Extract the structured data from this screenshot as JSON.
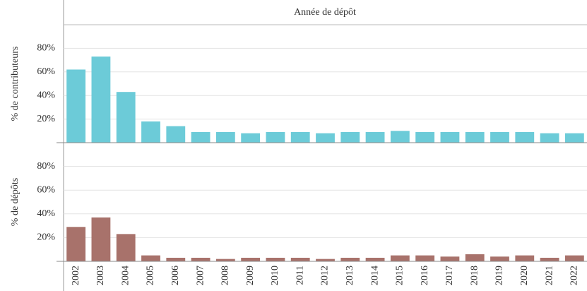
{
  "chart_data": {
    "type": "bar",
    "title": "Année de dépôt",
    "categories": [
      "2002",
      "2003",
      "2004",
      "2005",
      "2006",
      "2007",
      "2008",
      "2009",
      "2010",
      "2011",
      "2012",
      "2013",
      "2014",
      "2015",
      "2016",
      "2017",
      "2018",
      "2019",
      "2020",
      "2021",
      "2022"
    ],
    "series": [
      {
        "name": "% de contributeurs",
        "color": "#6ccbd8",
        "values": [
          62,
          73,
          43,
          18,
          14,
          9,
          9,
          8,
          9,
          9,
          8,
          9,
          9,
          10,
          9,
          9,
          9,
          9,
          9,
          8,
          8
        ]
      },
      {
        "name": "% de dépôts",
        "color": "#a8726b",
        "values": [
          29,
          37,
          23,
          5,
          3,
          3,
          2,
          3,
          3,
          3,
          2,
          3,
          3,
          5,
          5,
          4,
          6,
          4,
          5,
          3,
          5
        ]
      }
    ],
    "ylim": [
      0,
      100
    ],
    "yticks": [
      {
        "value": 20,
        "label": "20%"
      },
      {
        "value": 40,
        "label": "40%"
      },
      {
        "value": 60,
        "label": "60%"
      },
      {
        "value": 80,
        "label": "80%"
      }
    ],
    "grid": true
  }
}
